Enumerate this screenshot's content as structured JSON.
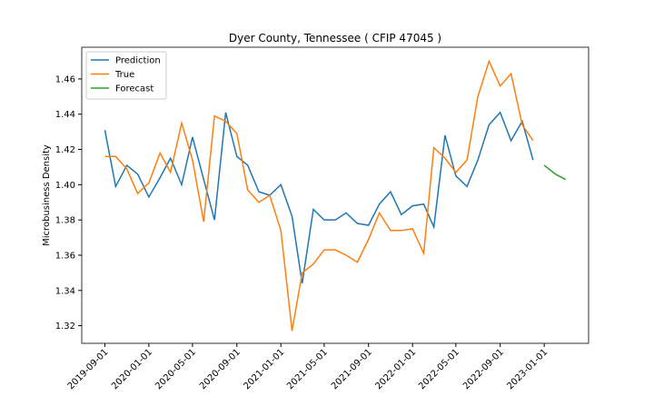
{
  "chart_data": {
    "type": "line",
    "title": "Dyer County, Tennessee ( CFIP 47045 )",
    "y_label": "Microbusiness Density",
    "x": [
      "2019-09-01",
      "2019-10-01",
      "2019-11-01",
      "2019-12-01",
      "2020-01-01",
      "2020-02-01",
      "2020-03-01",
      "2020-04-01",
      "2020-05-01",
      "2020-06-01",
      "2020-07-01",
      "2020-08-01",
      "2020-09-01",
      "2020-10-01",
      "2020-11-01",
      "2020-12-01",
      "2021-01-01",
      "2021-02-01",
      "2021-03-01",
      "2021-04-01",
      "2021-05-01",
      "2021-06-01",
      "2021-07-01",
      "2021-08-01",
      "2021-09-01",
      "2021-10-01",
      "2021-11-01",
      "2021-12-01",
      "2022-01-01",
      "2022-02-01",
      "2022-03-01",
      "2022-04-01",
      "2022-05-01",
      "2022-06-01",
      "2022-07-01",
      "2022-08-01",
      "2022-09-01",
      "2022-10-01",
      "2022-11-01",
      "2022-12-01",
      "2023-01-01",
      "2023-02-01",
      "2023-03-01"
    ],
    "series": [
      {
        "name": "Prediction",
        "color": "#1f77b4",
        "values": [
          1.431,
          1.399,
          1.411,
          1.406,
          1.393,
          1.404,
          1.415,
          1.4,
          1.427,
          1.403,
          1.38,
          1.441,
          1.416,
          1.411,
          1.396,
          1.394,
          1.4,
          1.382,
          1.344,
          1.386,
          1.38,
          1.38,
          1.384,
          1.378,
          1.377,
          1.389,
          1.396,
          1.383,
          1.388,
          1.389,
          1.376,
          1.428,
          1.405,
          1.399,
          1.414,
          1.434,
          1.441,
          1.425,
          1.436,
          1.414,
          null,
          null,
          null
        ]
      },
      {
        "name": "True",
        "color": "#ff7f0e",
        "values": [
          1.416,
          1.416,
          1.409,
          1.395,
          1.401,
          1.418,
          1.407,
          1.435,
          1.414,
          1.379,
          1.439,
          1.436,
          1.429,
          1.397,
          1.39,
          1.394,
          1.374,
          1.317,
          1.35,
          1.355,
          1.363,
          1.363,
          1.36,
          1.356,
          1.369,
          1.384,
          1.374,
          1.374,
          1.375,
          1.361,
          1.421,
          1.415,
          1.407,
          1.414,
          1.45,
          1.47,
          1.456,
          1.463,
          1.434,
          1.425,
          null,
          null,
          null
        ]
      },
      {
        "name": "Forecast",
        "color": "#2ca02c",
        "values": [
          null,
          null,
          null,
          null,
          null,
          null,
          null,
          null,
          null,
          null,
          null,
          null,
          null,
          null,
          null,
          null,
          null,
          null,
          null,
          null,
          null,
          null,
          null,
          null,
          null,
          null,
          null,
          null,
          null,
          null,
          null,
          null,
          null,
          null,
          null,
          null,
          null,
          null,
          null,
          null,
          1.411,
          1.406,
          1.403
        ]
      }
    ],
    "xlim": [
      "2019-06-29",
      "2023-05-04"
    ],
    "xticks": [
      "2019-09-01",
      "2020-01-01",
      "2020-05-01",
      "2020-09-01",
      "2021-01-01",
      "2021-05-01",
      "2021-09-01",
      "2022-01-01",
      "2022-05-01",
      "2022-09-01",
      "2023-01-01"
    ],
    "ylim": [
      1.31,
      1.478
    ],
    "yticks": [
      1.32,
      1.34,
      1.36,
      1.38,
      {
        "value": 1.4,
        "label": "1.40"
      },
      1.42,
      1.44,
      1.46
    ],
    "legend": "upper left"
  }
}
